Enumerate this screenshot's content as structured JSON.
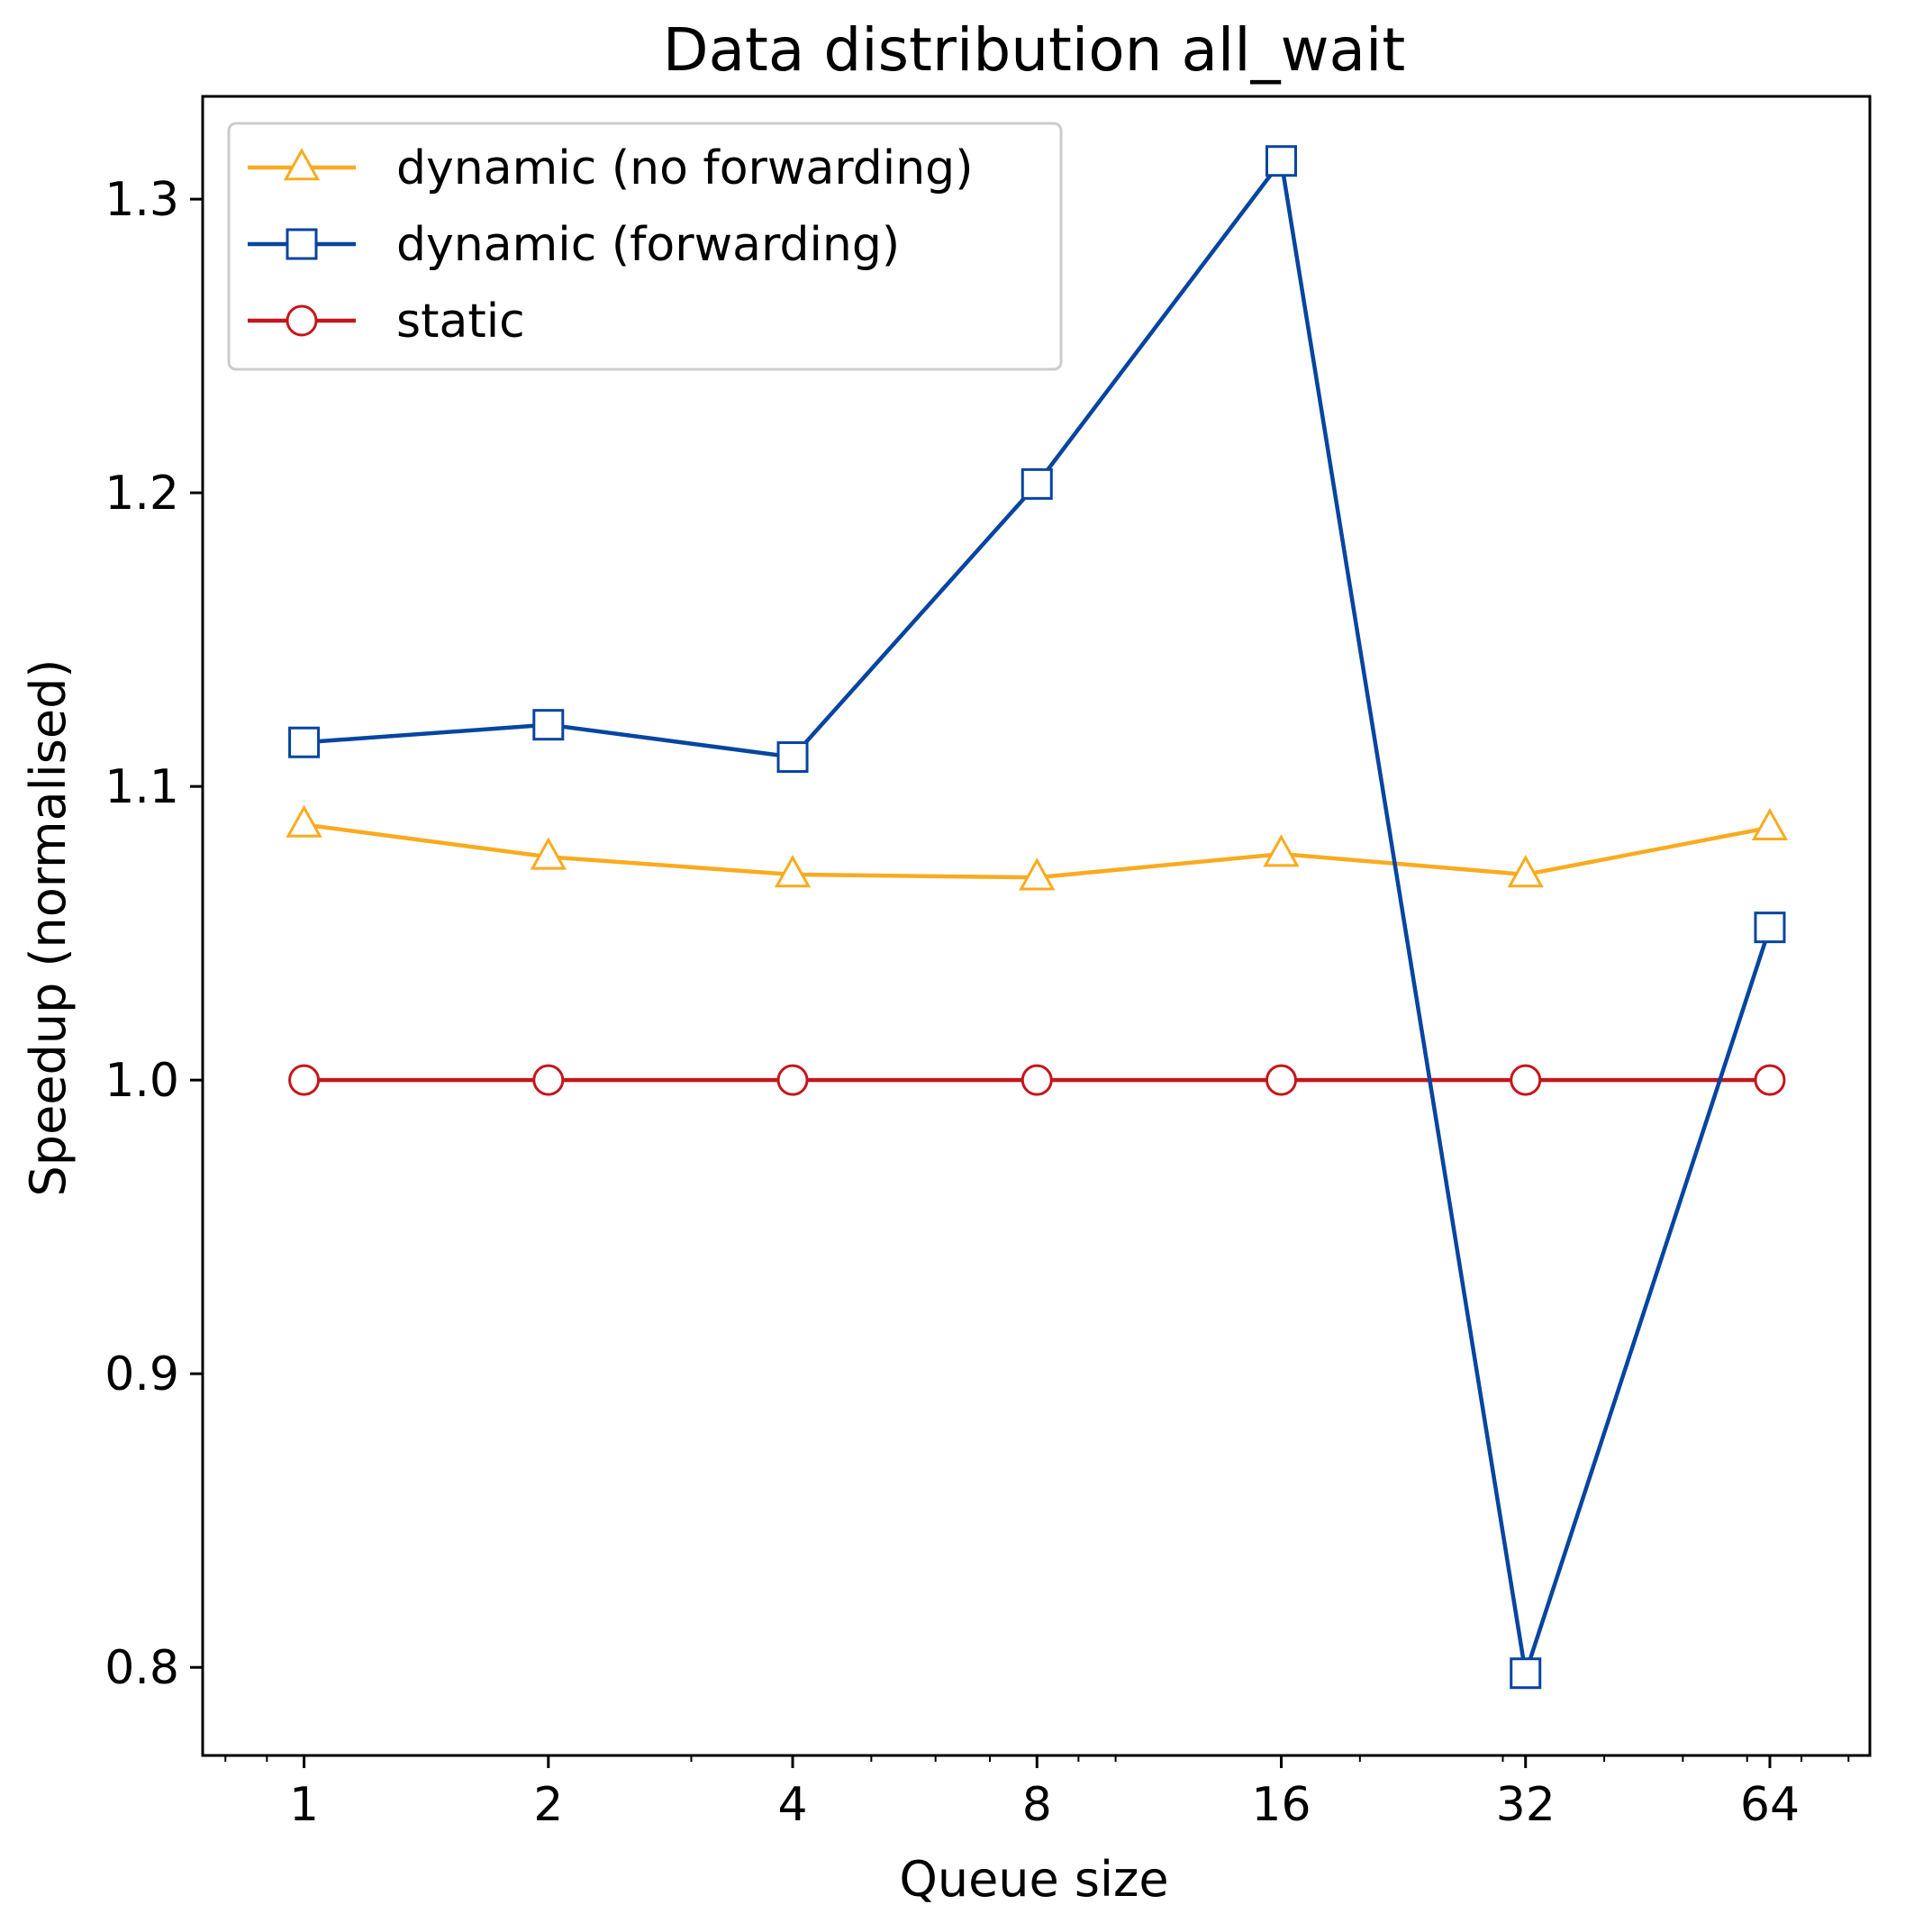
{
  "chart_data": {
    "type": "line",
    "title": "Data distribution all_wait",
    "xlabel": "Queue size",
    "ylabel": "Speedup (normalised)",
    "x_scale": "log2",
    "x": [
      1,
      2,
      4,
      8,
      16,
      32,
      64
    ],
    "x_tick_labels": [
      "1",
      "2",
      "4",
      "8",
      "16",
      "32",
      "64"
    ],
    "xlim": [
      0.75,
      85
    ],
    "ylim": [
      0.77,
      1.335
    ],
    "y_ticks": [
      0.8,
      0.9,
      1.0,
      1.1,
      1.2,
      1.3
    ],
    "y_tick_labels": [
      "0.8",
      "0.9",
      "1.0",
      "1.1",
      "1.2",
      "1.3"
    ],
    "grid": false,
    "legend_position": "top-left",
    "series": [
      {
        "name": "dynamic (no forwarding)",
        "color": "#F9AB1F",
        "marker": "triangle",
        "values": [
          1.087,
          1.076,
          1.07,
          1.069,
          1.077,
          1.07,
          1.086
        ]
      },
      {
        "name": "dynamic (forwarding)",
        "color": "#0645A0",
        "marker": "square",
        "values": [
          1.115,
          1.121,
          1.11,
          1.203,
          1.313,
          0.798,
          1.052
        ]
      },
      {
        "name": "static",
        "color": "#C4161C",
        "marker": "circle",
        "values": [
          1.0,
          1.0,
          1.0,
          1.0,
          1.0,
          1.0,
          1.0
        ]
      }
    ]
  }
}
